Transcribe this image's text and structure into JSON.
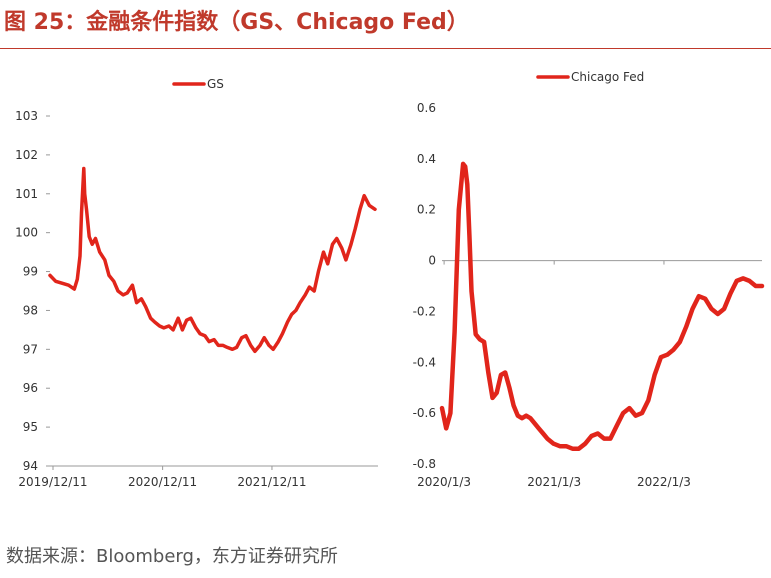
{
  "figure_title": "图 25：金融条件指数（GS、Chicago Fed）",
  "source": "数据来源：Bloomberg，东方证券研究所",
  "colors": {
    "line": "#e1251b",
    "axis": "#999999",
    "grid": "#dddddd",
    "title": "#c0392b"
  },
  "chart_data": [
    {
      "type": "line",
      "title": "",
      "xlabel": "",
      "ylabel": "",
      "legend": {
        "position": "top",
        "entries": [
          "GS"
        ]
      },
      "ylim": [
        94,
        103
      ],
      "yticks": [
        "103",
        "102",
        "101",
        "100",
        "99",
        "98",
        "97",
        "96",
        "95",
        "94"
      ],
      "xlim": [
        "2019-12-01",
        "2022-11-30"
      ],
      "xtick_labels": [
        "2019/12/11",
        "2020/12/11",
        "2021/12/11"
      ],
      "xtick_values": [
        "2019-12-11",
        "2020-12-11",
        "2021-12-11"
      ],
      "grid": false,
      "series": [
        {
          "name": "GS",
          "x": [
            "2019-12-01",
            "2019-12-20",
            "2020-01-10",
            "2020-02-01",
            "2020-02-20",
            "2020-03-01",
            "2020-03-10",
            "2020-03-15",
            "2020-03-20",
            "2020-03-23",
            "2020-03-26",
            "2020-04-01",
            "2020-04-10",
            "2020-04-20",
            "2020-05-01",
            "2020-05-15",
            "2020-06-01",
            "2020-06-15",
            "2020-07-01",
            "2020-07-15",
            "2020-08-01",
            "2020-08-15",
            "2020-09-01",
            "2020-09-15",
            "2020-10-01",
            "2020-10-15",
            "2020-11-01",
            "2020-11-15",
            "2020-12-01",
            "2020-12-15",
            "2021-01-01",
            "2021-01-15",
            "2021-02-01",
            "2021-02-15",
            "2021-03-01",
            "2021-03-15",
            "2021-04-01",
            "2021-04-15",
            "2021-05-01",
            "2021-05-15",
            "2021-06-01",
            "2021-06-15",
            "2021-07-01",
            "2021-07-15",
            "2021-08-01",
            "2021-08-15",
            "2021-09-01",
            "2021-09-15",
            "2021-10-01",
            "2021-10-15",
            "2021-11-01",
            "2021-11-15",
            "2021-12-01",
            "2021-12-15",
            "2022-01-01",
            "2022-01-15",
            "2022-02-01",
            "2022-02-15",
            "2022-03-01",
            "2022-03-15",
            "2022-04-01",
            "2022-04-15",
            "2022-05-01",
            "2022-05-15",
            "2022-06-01",
            "2022-06-15",
            "2022-07-01",
            "2022-07-15",
            "2022-08-01",
            "2022-08-15",
            "2022-09-01",
            "2022-09-15",
            "2022-10-01",
            "2022-10-15",
            "2022-11-01",
            "2022-11-20"
          ],
          "values": [
            98.9,
            98.75,
            98.7,
            98.65,
            98.55,
            98.8,
            99.4,
            100.5,
            101.2,
            101.65,
            101.0,
            100.6,
            99.9,
            99.7,
            99.85,
            99.5,
            99.3,
            98.9,
            98.75,
            98.5,
            98.4,
            98.45,
            98.65,
            98.2,
            98.3,
            98.1,
            97.8,
            97.7,
            97.6,
            97.55,
            97.6,
            97.5,
            97.8,
            97.5,
            97.75,
            97.8,
            97.55,
            97.4,
            97.35,
            97.2,
            97.25,
            97.1,
            97.1,
            97.05,
            97.0,
            97.05,
            97.3,
            97.35,
            97.1,
            96.95,
            97.1,
            97.3,
            97.1,
            97.0,
            97.2,
            97.4,
            97.7,
            97.9,
            98.0,
            98.2,
            98.4,
            98.6,
            98.5,
            99.0,
            99.5,
            99.2,
            99.7,
            99.85,
            99.6,
            99.3,
            99.7,
            100.1,
            100.6,
            100.95,
            100.7,
            100.6
          ]
        }
      ]
    },
    {
      "type": "line",
      "title": "",
      "xlabel": "",
      "ylabel": "",
      "legend": {
        "position": "top",
        "entries": [
          "Chicago Fed"
        ]
      },
      "ylim": [
        -0.8,
        0.6
      ],
      "yticks": [
        "0.6",
        "0.4",
        "0.2",
        "0",
        "-0.2",
        "-0.4",
        "-0.6",
        "-0.8"
      ],
      "xlim": [
        "2019-12-27",
        "2022-11-25"
      ],
      "xtick_labels": [
        "2020/1/3",
        "2021/1/3",
        "2022/1/3"
      ],
      "xtick_values": [
        "2020-01-03",
        "2021-01-03",
        "2022-01-03"
      ],
      "grid": false,
      "series": [
        {
          "name": "Chicago Fed",
          "x": [
            "2019-12-27",
            "2020-01-10",
            "2020-01-24",
            "2020-02-07",
            "2020-02-21",
            "2020-03-06",
            "2020-03-13",
            "2020-03-20",
            "2020-03-27",
            "2020-04-03",
            "2020-04-17",
            "2020-05-01",
            "2020-05-15",
            "2020-05-29",
            "2020-06-12",
            "2020-06-26",
            "2020-07-10",
            "2020-07-24",
            "2020-08-07",
            "2020-08-21",
            "2020-09-04",
            "2020-09-18",
            "2020-10-02",
            "2020-10-16",
            "2020-10-30",
            "2020-11-13",
            "2020-11-27",
            "2020-12-11",
            "2021-01-01",
            "2021-01-22",
            "2021-02-12",
            "2021-03-05",
            "2021-03-26",
            "2021-04-16",
            "2021-05-07",
            "2021-05-28",
            "2021-06-18",
            "2021-07-09",
            "2021-07-30",
            "2021-08-20",
            "2021-09-10",
            "2021-10-01",
            "2021-10-22",
            "2021-11-12",
            "2021-12-03",
            "2021-12-24",
            "2022-01-14",
            "2022-02-04",
            "2022-02-25",
            "2022-03-18",
            "2022-04-08",
            "2022-04-29",
            "2022-05-20",
            "2022-06-10",
            "2022-07-01",
            "2022-07-22",
            "2022-08-12",
            "2022-09-02",
            "2022-09-23",
            "2022-10-14",
            "2022-11-04",
            "2022-11-25"
          ],
          "values": [
            -0.58,
            -0.66,
            -0.6,
            -0.28,
            0.2,
            0.38,
            0.37,
            0.3,
            0.1,
            -0.12,
            -0.29,
            -0.31,
            -0.32,
            -0.44,
            -0.54,
            -0.52,
            -0.45,
            -0.44,
            -0.5,
            -0.57,
            -0.61,
            -0.62,
            -0.61,
            -0.62,
            -0.64,
            -0.66,
            -0.68,
            -0.7,
            -0.72,
            -0.73,
            -0.73,
            -0.74,
            -0.74,
            -0.72,
            -0.69,
            -0.68,
            -0.7,
            -0.7,
            -0.65,
            -0.6,
            -0.58,
            -0.61,
            -0.6,
            -0.55,
            -0.45,
            -0.38,
            -0.37,
            -0.35,
            -0.32,
            -0.26,
            -0.19,
            -0.14,
            -0.15,
            -0.19,
            -0.21,
            -0.19,
            -0.13,
            -0.08,
            -0.07,
            -0.08,
            -0.1,
            -0.1
          ]
        }
      ]
    }
  ]
}
